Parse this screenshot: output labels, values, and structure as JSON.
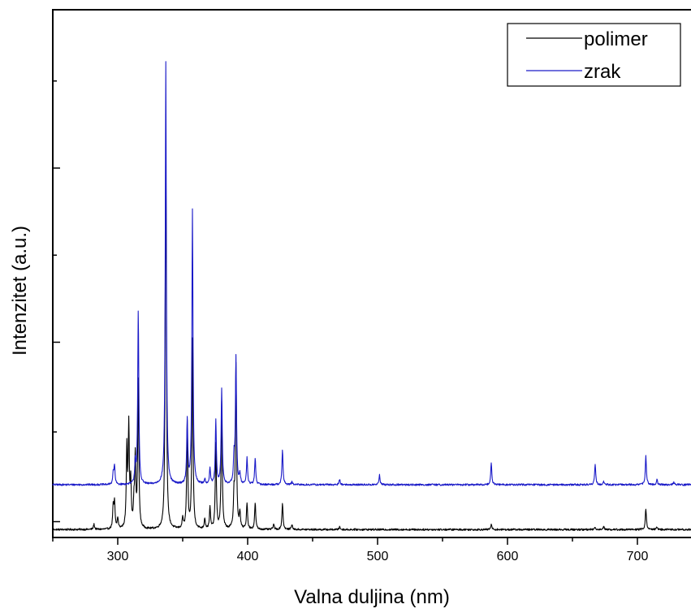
{
  "chart_data": {
    "type": "line",
    "title": "",
    "xlabel": "Valna duljina (nm)",
    "ylabel": "Intenzitet (a.u.)",
    "xlim": [
      250,
      750
    ],
    "ylim": [
      0,
      100
    ],
    "x_ticks": [
      300,
      400,
      500,
      600,
      700
    ],
    "x_tick_labels": [
      "300",
      "400",
      "500",
      "600",
      "700"
    ],
    "y_major_ticks": [
      3,
      37,
      70,
      103
    ],
    "y_tick_labels_shown": false,
    "legend_position": "top-right",
    "series": [
      {
        "name": "polimer",
        "color": "#000000",
        "baseline": 1.5,
        "peaks": [
          [
            281.7,
            1.0
          ],
          [
            296.5,
            4.0
          ],
          [
            297.5,
            5.0
          ],
          [
            300.0,
            2.0
          ],
          [
            307.0,
            15.0
          ],
          [
            308.5,
            19.0
          ],
          [
            310.0,
            8.0
          ],
          [
            312.5,
            4.0
          ],
          [
            313.5,
            13.0
          ],
          [
            315.8,
            28.0
          ],
          [
            337.0,
            75.0
          ],
          [
            350.0,
            2.0
          ],
          [
            353.5,
            20.0
          ],
          [
            357.5,
            36.0
          ],
          [
            367.0,
            2.0
          ],
          [
            371.0,
            4.0
          ],
          [
            375.5,
            16.0
          ],
          [
            380.0,
            24.0
          ],
          [
            389.5,
            6.0
          ],
          [
            391.0,
            31.0
          ],
          [
            394.0,
            3.0
          ],
          [
            399.5,
            5.0
          ],
          [
            405.8,
            5.0
          ],
          [
            420.0,
            1.0
          ],
          [
            426.8,
            5.0
          ],
          [
            434.0,
            1.0
          ],
          [
            470.8,
            0.5
          ],
          [
            587.5,
            1.0
          ],
          [
            667.5,
            0.5
          ],
          [
            674.0,
            0.7
          ],
          [
            706.5,
            4.0
          ],
          [
            715.0,
            0.6
          ]
        ]
      },
      {
        "name": "zrak",
        "color": "#1a1ac8",
        "baseline": 10,
        "peaks": [
          [
            296.5,
            2.0
          ],
          [
            297.5,
            3.5
          ],
          [
            313.5,
            4.0
          ],
          [
            315.8,
            33.0
          ],
          [
            337.0,
            80.0
          ],
          [
            353.5,
            12.0
          ],
          [
            357.5,
            52.0
          ],
          [
            367.0,
            1.0
          ],
          [
            371.0,
            3.0
          ],
          [
            375.5,
            12.0
          ],
          [
            380.0,
            18.0
          ],
          [
            389.5,
            5.0
          ],
          [
            391.0,
            24.0
          ],
          [
            394.0,
            2.0
          ],
          [
            399.5,
            5.0
          ],
          [
            405.8,
            5.0
          ],
          [
            426.8,
            6.5
          ],
          [
            434.0,
            0.5
          ],
          [
            470.8,
            1.0
          ],
          [
            501.5,
            1.8
          ],
          [
            587.5,
            4.0
          ],
          [
            667.5,
            4.0
          ],
          [
            674.0,
            0.6
          ],
          [
            706.5,
            5.5
          ],
          [
            715.0,
            1.0
          ],
          [
            728.0,
            0.5
          ]
        ]
      }
    ]
  }
}
